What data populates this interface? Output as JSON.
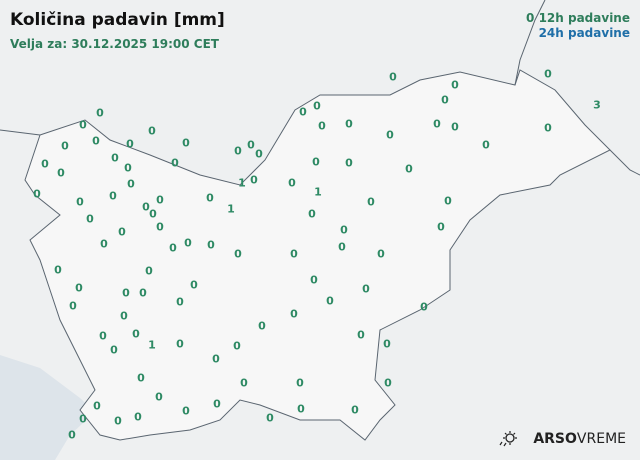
{
  "header": {
    "title": "Količina padavin [mm]",
    "valid": "Velja za: 30.12.2025 19:00 CET"
  },
  "legend": {
    "sample": "0",
    "h12": "12h padavine",
    "h24": "24h padavine",
    "color_12h": "#2e7d5b",
    "color_24h": "#1f6fa8"
  },
  "stations": [
    "0",
    "0",
    "0",
    "0",
    "0",
    "0",
    "3",
    "0",
    "0",
    "0",
    "0",
    "0",
    "0",
    "0",
    "0",
    "0",
    "0",
    "0",
    "0",
    "0",
    "0",
    "0",
    "0",
    "0",
    "0",
    "0",
    "0",
    "0",
    "0",
    "0",
    "0",
    "0",
    "0",
    "1",
    "0",
    "0",
    "1",
    "0",
    "0",
    "0",
    "0",
    "0",
    "0",
    "0",
    "0",
    "1",
    "0",
    "0",
    "0",
    "0",
    "0",
    "0",
    "0",
    "0",
    "0",
    "0",
    "0",
    "0",
    "0",
    "0",
    "0",
    "0",
    "0",
    "0",
    "0",
    "0",
    "0",
    "0",
    "0",
    "0",
    "0",
    "0",
    "0",
    "0",
    "0",
    "0",
    "0",
    "0",
    "1",
    "0",
    "0",
    "0",
    "0",
    "0",
    "0",
    "0",
    "0",
    "0",
    "0",
    "0",
    "0",
    "0",
    "0",
    "0",
    "0",
    "0",
    "0",
    "0",
    "0",
    "0"
  ],
  "logo": {
    "brand": "ARSO",
    "product": "VREME",
    "icon": "sun-rain-icon"
  }
}
